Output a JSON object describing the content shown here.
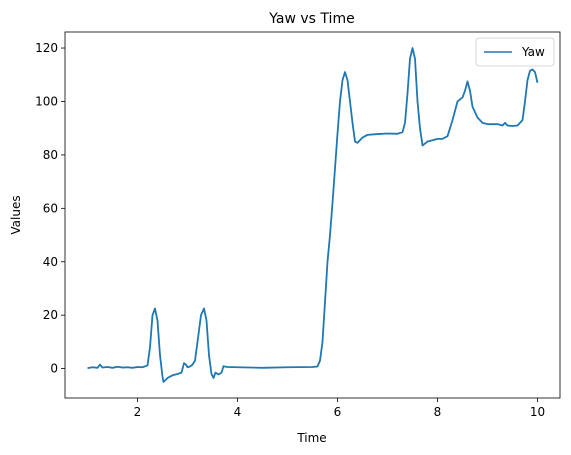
{
  "chart_data": {
    "type": "line",
    "title": "Yaw vs Time",
    "xlabel": "Time",
    "ylabel": "Values",
    "xlim": [
      0.55,
      10.45
    ],
    "ylim": [
      -11,
      126
    ],
    "xticks": [
      2,
      4,
      6,
      8,
      10
    ],
    "yticks": [
      0,
      20,
      40,
      60,
      80,
      100,
      120
    ],
    "grid": false,
    "legend": "top-right",
    "series": [
      {
        "name": "Yaw",
        "color": "#1f77b4",
        "points": [
          [
            1.0,
            0.2
          ],
          [
            1.1,
            0.5
          ],
          [
            1.2,
            0.3
          ],
          [
            1.25,
            1.5
          ],
          [
            1.3,
            0.4
          ],
          [
            1.4,
            0.6
          ],
          [
            1.5,
            0.3
          ],
          [
            1.6,
            0.7
          ],
          [
            1.7,
            0.4
          ],
          [
            1.8,
            0.5
          ],
          [
            1.9,
            0.3
          ],
          [
            2.0,
            0.6
          ],
          [
            2.1,
            0.5
          ],
          [
            2.2,
            1.2
          ],
          [
            2.25,
            8
          ],
          [
            2.3,
            20
          ],
          [
            2.35,
            22.5
          ],
          [
            2.4,
            18
          ],
          [
            2.45,
            5
          ],
          [
            2.5,
            -3
          ],
          [
            2.52,
            -5
          ],
          [
            2.6,
            -3.5
          ],
          [
            2.7,
            -2.5
          ],
          [
            2.8,
            -2.0
          ],
          [
            2.88,
            -1.5
          ],
          [
            2.93,
            2.0
          ],
          [
            2.97,
            1.5
          ],
          [
            3.0,
            0.5
          ],
          [
            3.05,
            0.8
          ],
          [
            3.1,
            1.5
          ],
          [
            3.15,
            3
          ],
          [
            3.2,
            10
          ],
          [
            3.27,
            20
          ],
          [
            3.33,
            22.5
          ],
          [
            3.38,
            18
          ],
          [
            3.43,
            5
          ],
          [
            3.48,
            -2
          ],
          [
            3.52,
            -3.5
          ],
          [
            3.56,
            -1.5
          ],
          [
            3.62,
            -2.2
          ],
          [
            3.68,
            -1.5
          ],
          [
            3.72,
            0.9
          ],
          [
            3.8,
            0.6
          ],
          [
            4.0,
            0.5
          ],
          [
            4.5,
            0.3
          ],
          [
            5.0,
            0.5
          ],
          [
            5.5,
            0.6
          ],
          [
            5.6,
            0.8
          ],
          [
            5.65,
            3
          ],
          [
            5.7,
            10
          ],
          [
            5.75,
            25
          ],
          [
            5.8,
            40
          ],
          [
            5.85,
            50
          ],
          [
            5.9,
            62
          ],
          [
            5.95,
            75
          ],
          [
            6.0,
            88
          ],
          [
            6.05,
            100
          ],
          [
            6.1,
            108
          ],
          [
            6.15,
            111
          ],
          [
            6.2,
            108
          ],
          [
            6.25,
            100
          ],
          [
            6.3,
            92
          ],
          [
            6.35,
            85
          ],
          [
            6.4,
            84.5
          ],
          [
            6.5,
            86.5
          ],
          [
            6.6,
            87.5
          ],
          [
            6.8,
            87.8
          ],
          [
            7.0,
            88.0
          ],
          [
            7.2,
            87.9
          ],
          [
            7.3,
            88.5
          ],
          [
            7.35,
            92
          ],
          [
            7.4,
            103
          ],
          [
            7.45,
            116
          ],
          [
            7.5,
            120
          ],
          [
            7.55,
            116
          ],
          [
            7.6,
            100
          ],
          [
            7.65,
            90
          ],
          [
            7.7,
            83.5
          ],
          [
            7.8,
            85
          ],
          [
            7.9,
            85.5
          ],
          [
            8.0,
            86
          ],
          [
            8.1,
            86
          ],
          [
            8.2,
            87
          ],
          [
            8.3,
            93
          ],
          [
            8.4,
            100
          ],
          [
            8.5,
            101.5
          ],
          [
            8.55,
            104
          ],
          [
            8.6,
            107.5
          ],
          [
            8.65,
            104
          ],
          [
            8.7,
            98
          ],
          [
            8.8,
            94
          ],
          [
            8.9,
            92
          ],
          [
            9.0,
            91.5
          ],
          [
            9.2,
            91.5
          ],
          [
            9.3,
            91.0
          ],
          [
            9.35,
            92
          ],
          [
            9.4,
            91
          ],
          [
            9.5,
            90.8
          ],
          [
            9.6,
            91
          ],
          [
            9.7,
            93
          ],
          [
            9.75,
            100
          ],
          [
            9.8,
            108
          ],
          [
            9.85,
            111.5
          ],
          [
            9.9,
            112
          ],
          [
            9.95,
            111
          ],
          [
            10.0,
            107
          ]
        ]
      }
    ]
  }
}
